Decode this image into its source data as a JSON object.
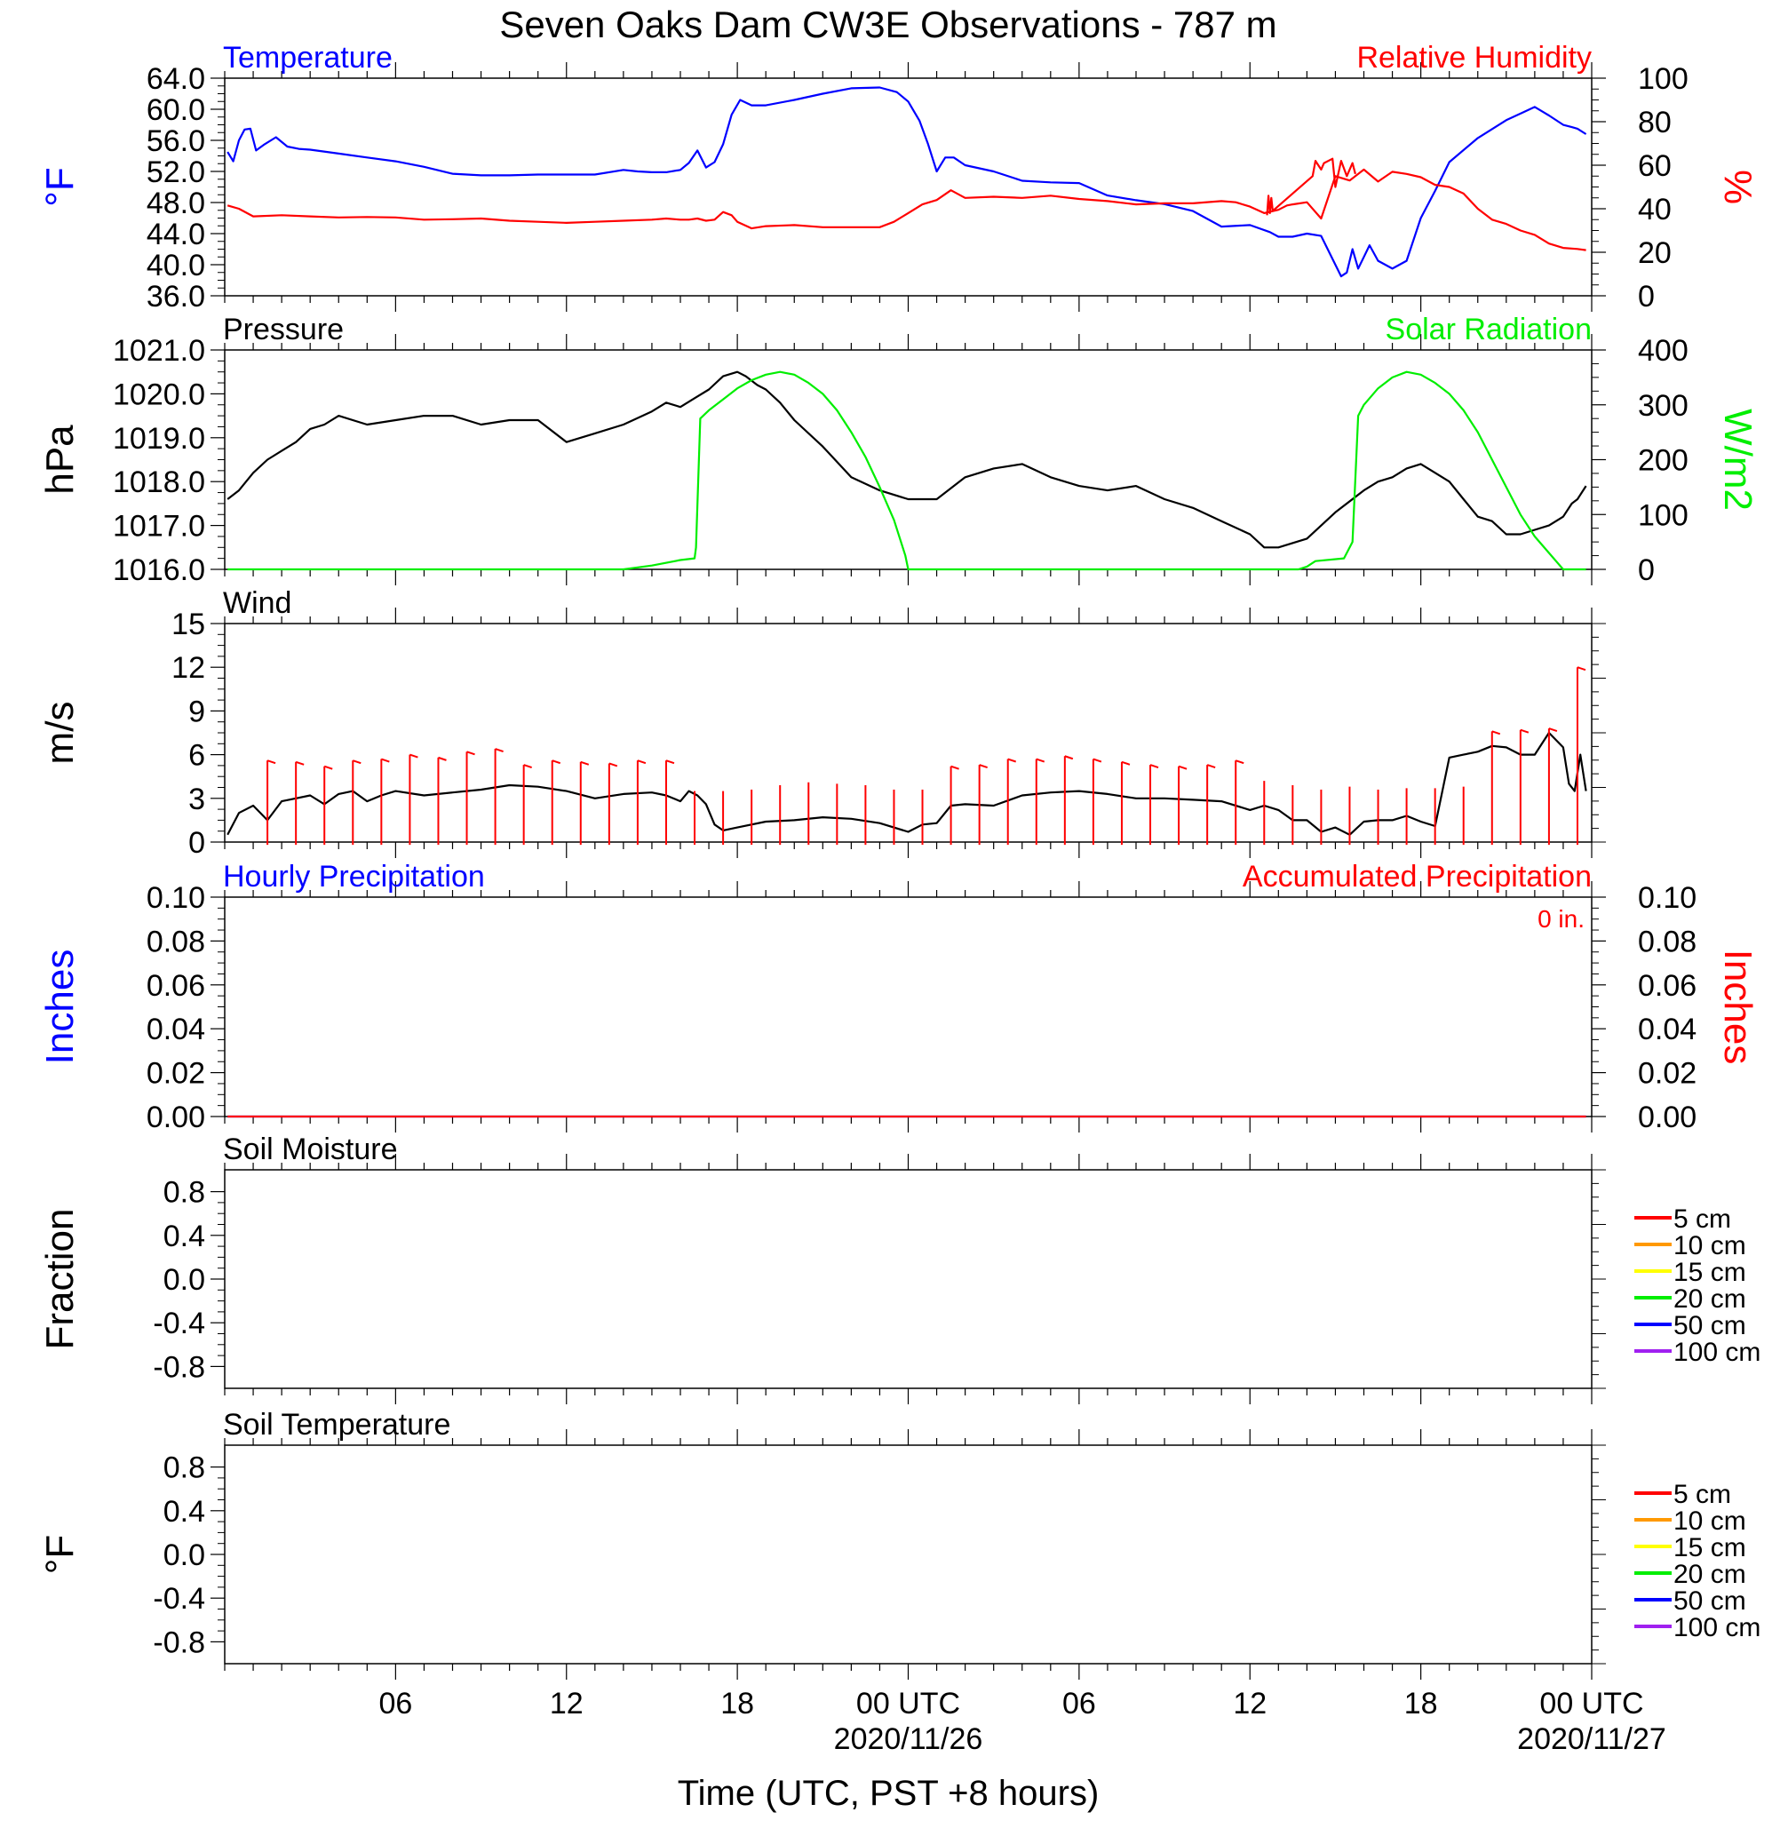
{
  "title": "Seven Oaks Dam CW3E Observations - 787 m",
  "xaxis": {
    "label": "Time (UTC, PST +8 hours)",
    "ticks": [
      "06",
      "12",
      "18",
      "00 UTC",
      "06",
      "12",
      "18",
      "00 UTC"
    ],
    "dates": [
      "2020/11/26",
      "2020/11/27"
    ]
  },
  "colors": {
    "blue": "#0000ff",
    "red": "#ff0000",
    "green": "#00ee00",
    "black": "#000000"
  },
  "legend": {
    "items": [
      {
        "label": "5 cm",
        "color": "#ff0000"
      },
      {
        "label": "10 cm",
        "color": "#ff9900"
      },
      {
        "label": "15 cm",
        "color": "#ffff00"
      },
      {
        "label": "20 cm",
        "color": "#00ee00"
      },
      {
        "label": "50 cm",
        "color": "#0000ff"
      },
      {
        "label": "100 cm",
        "color": "#a020f0"
      }
    ]
  },
  "chart_data": [
    {
      "type": "line",
      "x_unit": "hours since 2020/11/25 00 UTC",
      "title_left": "Temperature",
      "title_right": "Relative Humidity",
      "ylabel_left": "°F",
      "ylabel_right": "%",
      "ylim_left": [
        36,
        64
      ],
      "ylim_right": [
        0,
        100
      ],
      "yticks_left": [
        "64.0",
        "60.0",
        "56.0",
        "52.0",
        "48.0",
        "44.0",
        "40.0",
        "36.0"
      ],
      "yticks_right": [
        "100",
        "80",
        "60",
        "40",
        "20",
        "0"
      ],
      "series": [
        {
          "name": "Temperature",
          "axis": "left",
          "color": "#0000ff",
          "x": [
            0.1,
            0.3,
            0.5,
            0.7,
            0.9,
            1.1,
            1.4,
            1.8,
            2.2,
            2.6,
            3,
            4,
            5,
            6,
            7,
            8,
            9,
            10,
            11,
            12,
            13,
            14,
            14.5,
            15,
            15.5,
            16,
            16.3,
            16.6,
            16.9,
            17.2,
            17.5,
            17.8,
            18.1,
            18.5,
            19,
            20,
            21,
            22,
            23,
            23.6,
            24,
            24.4,
            24.7,
            25,
            25.3,
            25.6,
            26,
            27,
            28,
            29,
            30,
            31,
            32,
            33,
            34,
            35,
            36,
            36.7,
            37,
            37.5,
            38,
            38.5,
            39,
            39.2,
            39.4,
            39.6,
            39.8,
            40,
            40.2,
            40.5,
            41,
            41.5,
            42,
            42.5,
            43,
            44,
            45,
            46,
            46.5,
            47,
            47.3,
            47.5,
            47.8
          ],
          "y": [
            54.5,
            53.3,
            56,
            57.4,
            57.5,
            54.7,
            55.5,
            56.4,
            55.2,
            54.9,
            54.8,
            54.3,
            53.8,
            53.3,
            52.6,
            51.7,
            51.5,
            51.5,
            51.6,
            51.6,
            51.6,
            52.2,
            52,
            51.9,
            51.9,
            52.2,
            53.1,
            54.7,
            52.5,
            53.2,
            55.5,
            59.3,
            61.2,
            60.5,
            60.5,
            61.2,
            62,
            62.7,
            62.8,
            62.2,
            61,
            58.5,
            55.5,
            52,
            53.8,
            53.8,
            52.8,
            52,
            50.8,
            50.6,
            50.5,
            48.9,
            48.3,
            47.8,
            46.9,
            44.9,
            45.1,
            44.2,
            43.6,
            43.6,
            44,
            43.7,
            40,
            38.5,
            39,
            42,
            39.5,
            41,
            42.5,
            40.5,
            39.5,
            40.5,
            46,
            49.5,
            53.2,
            56.3,
            58.6,
            60.3,
            59.2,
            58,
            57.7,
            57.5,
            56.8
          ]
        },
        {
          "name": "Relative Humidity",
          "axis": "right",
          "color": "#ff0000",
          "x": [
            0.1,
            0.5,
            1,
            2,
            3,
            4,
            5,
            6,
            7,
            8,
            9,
            10,
            11,
            12,
            13,
            14,
            15,
            15.5,
            16,
            16.3,
            16.6,
            16.9,
            17.2,
            17.5,
            17.8,
            18,
            18.5,
            19,
            20,
            21,
            22,
            22.5,
            23,
            23.5,
            24,
            24.5,
            25,
            25.5,
            26,
            27,
            28,
            29,
            30,
            31,
            32,
            33,
            34,
            35,
            35.5,
            36,
            36.5,
            37,
            37.3,
            37.5,
            38,
            38.5,
            39,
            39.5,
            40,
            40.5,
            41,
            41.5,
            42,
            42.5,
            43,
            43.5,
            44,
            44.5,
            45,
            45.5,
            46,
            46.5,
            47,
            47.5,
            47.8
          ],
          "y": [
            41.5,
            40,
            36.5,
            37,
            36.5,
            36,
            36.2,
            36,
            35,
            35.2,
            35.5,
            34.5,
            34,
            33.5,
            34,
            34.5,
            35,
            35.5,
            35,
            35,
            35.5,
            34.5,
            35,
            38.5,
            37,
            34,
            31,
            32,
            32.5,
            31.5,
            31.5,
            31.5,
            31.5,
            34,
            38,
            42,
            44,
            48.5,
            45,
            45.5,
            45,
            46,
            44.5,
            43.5,
            42,
            42.5,
            42.5,
            43.5,
            43,
            41,
            38,
            39.5,
            41.5,
            42,
            43,
            35.5,
            55,
            53,
            58,
            52.5,
            57,
            56,
            54.5,
            51,
            50,
            47,
            40,
            35,
            33,
            30,
            28,
            24,
            22,
            21.5,
            21
          ]
        },
        {
          "name": "Relative Humidity (fluctuation)",
          "axis": "right",
          "color": "#ff0000",
          "x": [
            36.6,
            36.65,
            36.7,
            36.75,
            36.8,
            38.2,
            38.3,
            38.5,
            38.6,
            38.9,
            39,
            39.2,
            39.4,
            39.6,
            39.7
          ],
          "y": [
            37,
            46,
            38,
            45,
            39,
            55,
            62,
            58,
            61,
            63,
            50,
            62,
            55,
            61,
            56
          ]
        }
      ]
    },
    {
      "type": "line",
      "x_unit": "hours since 2020/11/25 00 UTC",
      "title_left": "Pressure",
      "title_right": "Solar Radiation",
      "ylabel_left": "hPa",
      "ylabel_right": "W/m2",
      "ylim_left": [
        1016,
        1021
      ],
      "ylim_right": [
        0,
        400
      ],
      "yticks_left": [
        "1021.0",
        "1020.0",
        "1019.0",
        "1018.0",
        "1017.0",
        "1016.0"
      ],
      "yticks_right": [
        "400",
        "300",
        "200",
        "100",
        "0"
      ],
      "series": [
        {
          "name": "Pressure",
          "axis": "left",
          "color": "#000000",
          "x": [
            0.1,
            0.5,
            1,
            1.5,
            2,
            2.5,
            3,
            3.5,
            4,
            5,
            6,
            7,
            8,
            9,
            10,
            11,
            12,
            13,
            14,
            15,
            15.5,
            16,
            16.5,
            17,
            17.5,
            18,
            18.3,
            18.7,
            19,
            19.5,
            20,
            21,
            22,
            23,
            24,
            25,
            26,
            27,
            28,
            29,
            30,
            31,
            32,
            33,
            34,
            35,
            36,
            36.5,
            37,
            38,
            39,
            40,
            40.5,
            41,
            41.5,
            42,
            42.5,
            43,
            43.5,
            44,
            44.5,
            45,
            45.5,
            46,
            46.5,
            47,
            47.3,
            47.5,
            47.8
          ],
          "y": [
            1017.6,
            1017.8,
            1018.2,
            1018.5,
            1018.7,
            1018.9,
            1019.2,
            1019.3,
            1019.5,
            1019.3,
            1019.4,
            1019.5,
            1019.5,
            1019.3,
            1019.4,
            1019.4,
            1018.9,
            1019.1,
            1019.3,
            1019.6,
            1019.8,
            1019.7,
            1019.9,
            1020.1,
            1020.4,
            1020.5,
            1020.4,
            1020.2,
            1020.1,
            1019.8,
            1019.4,
            1018.8,
            1018.1,
            1017.8,
            1017.6,
            1017.6,
            1018.1,
            1018.3,
            1018.4,
            1018.1,
            1017.9,
            1017.8,
            1017.9,
            1017.6,
            1017.4,
            1017.1,
            1016.8,
            1016.5,
            1016.5,
            1016.7,
            1017.3,
            1017.8,
            1018.0,
            1018.1,
            1018.3,
            1018.4,
            1018.2,
            1018.0,
            1017.6,
            1017.2,
            1017.1,
            1016.8,
            1016.8,
            1016.9,
            1017.0,
            1017.2,
            1017.5,
            1017.6,
            1017.9
          ]
        },
        {
          "name": "Solar Radiation",
          "axis": "right",
          "color": "#00ee00",
          "x": [
            0.1,
            14,
            15,
            16,
            16.5,
            16.55,
            16.7,
            17,
            17.5,
            18,
            18.5,
            19,
            19.5,
            20,
            20.5,
            21,
            21.5,
            22,
            22.5,
            23,
            23.5,
            23.9,
            24,
            25,
            37.7,
            38,
            38.3,
            39.3,
            39.6,
            39.8,
            40,
            40.5,
            41,
            41.5,
            42,
            42.5,
            43,
            43.5,
            44,
            44.5,
            45,
            45.5,
            46,
            46.5,
            47,
            47.2,
            47.8
          ],
          "y": [
            0,
            0,
            7,
            17,
            20,
            40,
            275,
            290,
            310,
            330,
            345,
            355,
            360,
            355,
            340,
            320,
            290,
            250,
            205,
            150,
            90,
            25,
            0,
            0,
            0,
            5,
            15,
            20,
            50,
            280,
            300,
            330,
            350,
            360,
            355,
            340,
            320,
            290,
            250,
            200,
            150,
            100,
            60,
            30,
            0,
            0,
            0
          ]
        }
      ]
    },
    {
      "type": "line",
      "x_unit": "hours since 2020/11/25 00 UTC",
      "title_left": "Wind",
      "ylabel_left": "m/s",
      "ylim_left": [
        0,
        15
      ],
      "yticks_left": [
        "15",
        "12",
        "9",
        "6",
        "3",
        "0"
      ],
      "series": [
        {
          "name": "Wind",
          "axis": "left",
          "color": "#000000",
          "x": [
            0.1,
            0.5,
            1,
            1.5,
            2,
            2.5,
            3,
            3.5,
            4,
            4.5,
            5,
            5.5,
            6,
            7,
            8,
            9,
            10,
            11,
            12,
            13,
            14,
            15,
            15.5,
            16,
            16.3,
            16.6,
            16.9,
            17.2,
            17.5,
            18,
            19,
            20,
            21,
            22,
            23,
            24,
            24.5,
            25,
            25.5,
            26,
            27,
            28,
            29,
            30,
            31,
            32,
            33,
            34,
            35,
            36,
            36.5,
            37,
            37.5,
            38,
            38.5,
            39,
            39.5,
            40,
            40.5,
            41,
            41.5,
            42,
            42.5,
            43,
            43.5,
            44,
            44.5,
            45,
            45.5,
            46,
            46.5,
            47,
            47.2,
            47.4,
            47.6,
            47.8
          ],
          "y": [
            0.5,
            2,
            2.5,
            1.5,
            2.8,
            3,
            3.2,
            2.6,
            3.3,
            3.5,
            2.8,
            3.2,
            3.5,
            3.2,
            3.4,
            3.6,
            3.9,
            3.8,
            3.5,
            3,
            3.3,
            3.4,
            3.2,
            2.8,
            3.5,
            3.2,
            2.6,
            1.2,
            0.8,
            1,
            1.4,
            1.5,
            1.7,
            1.6,
            1.3,
            0.7,
            1.2,
            1.3,
            2.5,
            2.6,
            2.5,
            3.2,
            3.4,
            3.5,
            3.3,
            3,
            3,
            2.9,
            2.8,
            2.2,
            2.5,
            2.2,
            1.5,
            1.5,
            0.7,
            1,
            0.5,
            1.4,
            1.5,
            1.5,
            1.8,
            1.4,
            1.1,
            5.8,
            6,
            6.2,
            6.6,
            6.5,
            6,
            6,
            7.5,
            6.5,
            4,
            3.5,
            6,
            3.5
          ]
        },
        {
          "name": "Wind barbs",
          "axis": "left",
          "color": "#ff0000",
          "style": "barbs",
          "x": [
            1.5,
            2.5,
            3.5,
            4.5,
            5.5,
            6.5,
            7.5,
            8.5,
            9.5,
            10.5,
            11.5,
            12.5,
            13.5,
            14.5,
            15.5,
            16.5,
            17.5,
            18.5,
            19.5,
            20.5,
            21.5,
            22.5,
            23.5,
            24.5,
            25.5,
            26.5,
            27.5,
            28.5,
            29.5,
            30.5,
            31.5,
            32.5,
            33.5,
            34.5,
            35.5,
            36.5,
            37.5,
            38.5,
            39.5,
            40.5,
            41.5,
            42.5,
            43.5,
            44.5,
            45.5,
            46.5,
            47.5
          ],
          "y": [
            5.6,
            5.5,
            5.2,
            5.6,
            5.7,
            6,
            5.8,
            6.2,
            6.4,
            5.3,
            5.6,
            5.5,
            5.4,
            5.6,
            5.6,
            3.5,
            3.5,
            3.6,
            3.9,
            4.1,
            4,
            3.9,
            3.6,
            3.6,
            5.2,
            5.3,
            5.7,
            5.7,
            5.9,
            5.7,
            5.5,
            5.3,
            5.2,
            5.3,
            5.6,
            4.2,
            3.9,
            3.6,
            3.8,
            3.6,
            3.7,
            3.7,
            3.8,
            7.6,
            7.7,
            7.8,
            12
          ]
        }
      ]
    },
    {
      "type": "line",
      "x_unit": "hours since 2020/11/25 00 UTC",
      "title_left": "Hourly Precipitation",
      "title_right": "Accumulated Precipitation",
      "annotation": "0 in.",
      "ylabel_left": "Inches",
      "ylabel_right": "Inches",
      "ylim_left": [
        0,
        0.1
      ],
      "ylim_right": [
        0,
        0.1
      ],
      "yticks_left": [
        "0.10",
        "0.08",
        "0.06",
        "0.04",
        "0.02",
        "0.00"
      ],
      "yticks_right": [
        "0.10",
        "0.08",
        "0.06",
        "0.04",
        "0.02",
        "0.00"
      ],
      "series": [
        {
          "name": "Hourly Precipitation",
          "axis": "left",
          "color": "#0000ff",
          "x": [
            0.1,
            47.8
          ],
          "y": [
            0,
            0
          ]
        },
        {
          "name": "Accumulated Precipitation",
          "axis": "right",
          "color": "#ff0000",
          "x": [
            0.1,
            47.8
          ],
          "y": [
            0,
            0
          ]
        }
      ]
    },
    {
      "type": "line",
      "title_left": "Soil Moisture",
      "ylabel_left": "Fraction",
      "ylim_left": [
        -1,
        1
      ],
      "yticks_left": [
        "0.8",
        "0.4",
        "0.0",
        "-0.4",
        "-0.8"
      ],
      "series": []
    },
    {
      "type": "line",
      "title_left": "Soil Temperature",
      "ylabel_left": "°F",
      "ylim_left": [
        -1,
        1
      ],
      "yticks_left": [
        "0.8",
        "0.4",
        "0.0",
        "-0.4",
        "-0.8"
      ],
      "series": []
    }
  ]
}
